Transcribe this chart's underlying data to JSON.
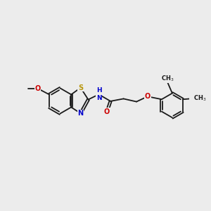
{
  "bg_color": "#ececec",
  "bond_color": "#1a1a1a",
  "S_color": "#b8960c",
  "N_color": "#0000cc",
  "O_color": "#cc0000",
  "C_color": "#1a1a1a",
  "font_size": 7.0,
  "lw": 1.3,
  "figsize": [
    3.0,
    3.0
  ],
  "dpi": 100,
  "xlim": [
    0,
    10
  ],
  "ylim": [
    0,
    10
  ]
}
